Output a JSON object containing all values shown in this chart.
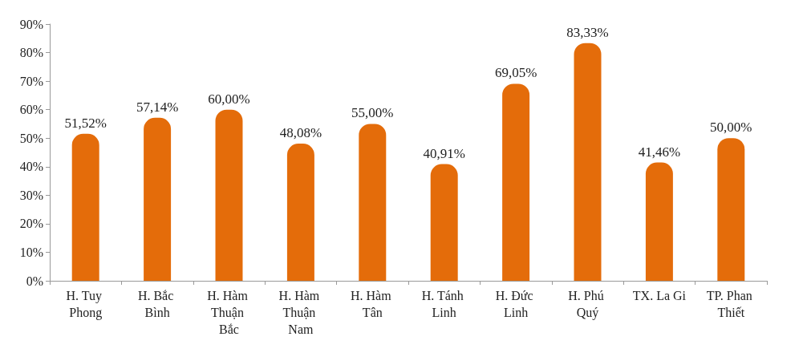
{
  "chart_data": {
    "type": "bar",
    "categories": [
      "H. Tuy Phong",
      "H. Bắc Bình",
      "H. Hàm Thuận Bắc",
      "H. Hàm Thuận Nam",
      "H. Hàm Tân",
      "H. Tánh Linh",
      "H. Đức Linh",
      "H. Phú Quý",
      "TX. La Gi",
      "TP. Phan Thiết"
    ],
    "values": [
      51.52,
      57.14,
      60.0,
      48.08,
      55.0,
      40.91,
      69.05,
      83.33,
      41.46,
      50.0
    ],
    "value_labels": [
      "51,52%",
      "57,14%",
      "60,00%",
      "48,08%",
      "55,00%",
      "40,91%",
      "69,05%",
      "83,33%",
      "41,46%",
      "50,00%"
    ],
    "color": "#e46c0a",
    "ylim": [
      0,
      90
    ],
    "yticks": [
      {
        "value": 0,
        "label": "0%"
      },
      {
        "value": 10,
        "label": "10%"
      },
      {
        "value": 20,
        "label": "20%"
      },
      {
        "value": 30,
        "label": "30%"
      },
      {
        "value": 40,
        "label": "40%"
      },
      {
        "value": 50,
        "label": "50%"
      },
      {
        "value": 60,
        "label": "60%"
      },
      {
        "value": 70,
        "label": "70%"
      },
      {
        "value": 80,
        "label": "80%"
      },
      {
        "value": 90,
        "label": "90%"
      }
    ],
    "grid": false
  }
}
